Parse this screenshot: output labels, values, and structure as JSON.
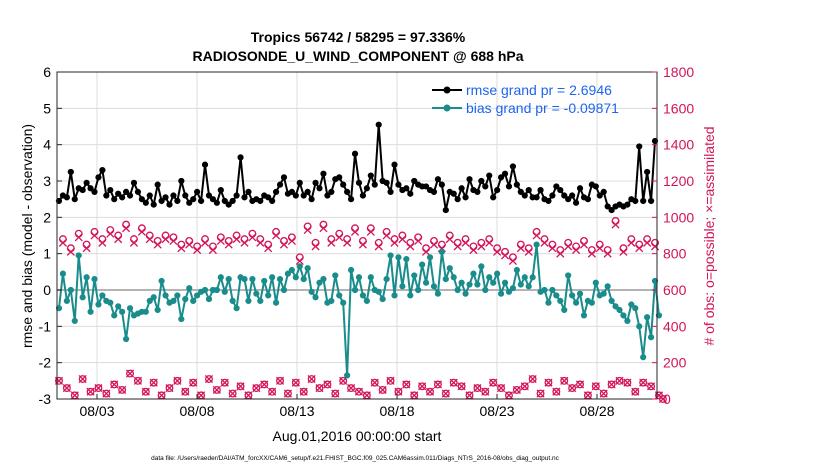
{
  "chart_data": {
    "type": "line",
    "title": "Tropics 56742 / 58295 = 97.336%",
    "subtitle": "RADIOSONDE_U_WIND_COMPONENT @ 688 hPa",
    "xlabel": "Aug.01,2016 00:00:00 start",
    "ylabel_left": "rmse and bias (model - observation)",
    "ylabel_right": "# of obs: o=possible; ×=assimilated",
    "footer": "data file: /Users/raeder/DAI/ATM_forcXX/CAM6_setup/f.e21.FHIST_BGC.f09_025.CAM6assim.011/Diags_NTrS_2016-08/obs_diag_output.nc",
    "x_tick_labels": [
      "08/03",
      "08/08",
      "08/13",
      "08/18",
      "08/23",
      "08/28"
    ],
    "x_tick_days": [
      3,
      8,
      13,
      18,
      23,
      28
    ],
    "xlim_days": [
      1,
      31
    ],
    "ylim_left": [
      -3,
      6
    ],
    "y_ticks_left": [
      "-3",
      "-2",
      "-1",
      "0",
      "1",
      "2",
      "3",
      "4",
      "5",
      "6"
    ],
    "ylim_right": [
      0,
      1800
    ],
    "y_ticks_right": [
      "0",
      "200",
      "400",
      "600",
      "800",
      "1000",
      "1200",
      "1400",
      "1600",
      "1800"
    ],
    "zero_line": 0,
    "colors": {
      "rmse": "#000000",
      "bias": "#1a8c8c",
      "obs": "#d2145a",
      "zero_line": "#b4b4b4",
      "legend_text": "#1e64f0",
      "grid": "#dcdcdc"
    },
    "series": [
      {
        "name": "rmse grand pr = 2.6946",
        "axis": "left",
        "values": [
          2.45,
          2.6,
          2.55,
          3.25,
          2.5,
          2.8,
          2.75,
          2.95,
          2.8,
          2.7,
          3.1,
          3.3,
          2.6,
          2.75,
          2.5,
          2.65,
          2.55,
          2.7,
          2.6,
          2.95,
          2.7,
          2.5,
          2.4,
          2.6,
          2.35,
          2.9,
          2.45,
          2.55,
          2.35,
          2.6,
          2.45,
          3.0,
          2.6,
          2.4,
          2.5,
          2.7,
          2.45,
          3.45,
          2.6,
          2.5,
          2.4,
          2.75,
          2.45,
          2.35,
          2.45,
          2.6,
          3.65,
          2.55,
          2.7,
          2.45,
          2.5,
          2.45,
          2.6,
          2.55,
          2.45,
          2.7,
          2.9,
          3.1,
          2.65,
          2.7,
          2.6,
          2.95,
          2.6,
          2.7,
          2.5,
          2.95,
          2.8,
          3.2,
          2.6,
          2.7,
          3.05,
          3.1,
          2.9,
          2.7,
          2.5,
          3.75,
          2.95,
          2.6,
          2.8,
          3.15,
          2.9,
          4.55,
          3.0,
          2.95,
          2.7,
          3.45,
          2.9,
          2.75,
          2.8,
          2.65,
          3.0,
          2.9,
          2.85,
          2.85,
          2.75,
          2.7,
          3.05,
          2.9,
          2.2,
          2.7,
          2.65,
          2.5,
          2.8,
          2.55,
          3.05,
          2.75,
          2.7,
          3.0,
          2.85,
          3.15,
          2.55,
          2.75,
          3.1,
          3.2,
          2.85,
          3.4,
          2.9,
          2.7,
          2.6,
          2.75,
          2.55,
          2.55,
          2.75,
          2.5,
          2.45,
          2.6,
          2.85,
          2.75,
          2.6,
          2.5,
          2.6,
          2.4,
          2.8,
          2.55,
          2.5,
          2.9,
          2.85,
          2.6,
          2.7,
          2.3,
          2.2,
          2.3,
          2.35,
          2.3,
          2.35,
          2.5,
          2.45,
          3.95,
          2.45,
          3.25,
          2.45,
          4.1
        ]
      },
      {
        "name": "bias grand pr = -0.09871",
        "axis": "left",
        "values": [
          -0.5,
          0.45,
          -0.3,
          0.0,
          -0.85,
          0.95,
          -0.2,
          0.35,
          -0.6,
          0.3,
          -0.4,
          -0.15,
          -0.3,
          -0.35,
          -0.7,
          -0.45,
          -0.6,
          -1.35,
          -0.5,
          -0.7,
          -0.65,
          -0.6,
          -0.6,
          -0.3,
          -0.2,
          -0.55,
          0.25,
          -0.15,
          -0.35,
          -0.3,
          -0.15,
          -0.8,
          -0.25,
          0.05,
          -0.3,
          -0.15,
          -0.05,
          0.0,
          -0.25,
          0.0,
          0.0,
          0.35,
          -0.05,
          0.3,
          -0.3,
          -0.5,
          0.35,
          0.3,
          -0.3,
          0.3,
          -0.1,
          -0.3,
          0.25,
          -0.15,
          0.35,
          -0.35,
          0.3,
          0.0,
          0.45,
          0.55,
          0.35,
          0.65,
          0.3,
          0.6,
          -0.05,
          -0.2,
          0.2,
          0.3,
          -0.35,
          -0.3,
          0.4,
          -0.15,
          -0.35,
          -2.35,
          0.55,
          0.0,
          0.35,
          -0.15,
          -0.3,
          0.35,
          0.0,
          -0.05,
          -0.25,
          0.3,
          0.95,
          -0.15,
          0.9,
          0.1,
          0.85,
          -0.15,
          0.4,
          0.0,
          0.7,
          0.2,
          0.9,
          0.1,
          -0.1,
          1.05,
          0.3,
          0.6,
          0.35,
          0.0,
          0.2,
          -0.1,
          0.15,
          0.45,
          0.15,
          0.65,
          0.0,
          0.35,
          0.2,
          0.45,
          -0.1,
          0.2,
          -0.05,
          0.05,
          0.55,
          0.15,
          0.35,
          0.1,
          0.35,
          1.25,
          -0.05,
          0.0,
          -0.35,
          0.0,
          -0.15,
          -0.3,
          -0.55,
          0.4,
          -0.15,
          -0.35,
          -0.1,
          -0.7,
          -0.3,
          -0.35,
          0.2,
          -0.15,
          -0.1,
          0.1,
          -0.3,
          -0.45,
          -0.55,
          -0.7,
          -0.85,
          -0.4,
          -0.5,
          -1.0,
          -1.85,
          -0.75,
          -1.3,
          0.25,
          -0.7
        ]
      },
      {
        "name": "obs possible",
        "axis": "right",
        "values": [
          100,
          880,
          60,
          830,
          20,
          910,
          110,
          850,
          40,
          920,
          60,
          880,
          30,
          930,
          80,
          900,
          50,
          960,
          140,
          880,
          100,
          940,
          40,
          900,
          90,
          870,
          20,
          900,
          60,
          890,
          100,
          850,
          40,
          870,
          90,
          840,
          20,
          880,
          110,
          840,
          50,
          890,
          90,
          870,
          30,
          900,
          70,
          880,
          20,
          910,
          60,
          880,
          80,
          850,
          40,
          920,
          100,
          870,
          30,
          890,
          90,
          780,
          40,
          950,
          110,
          860,
          60,
          960,
          80,
          880,
          30,
          910,
          100,
          880,
          60,
          940,
          40,
          870,
          20,
          940,
          90,
          860,
          50,
          920,
          100,
          880,
          40,
          900,
          80,
          860,
          20,
          890,
          70,
          830,
          40,
          870,
          80,
          850,
          30,
          900,
          90,
          860,
          70,
          880,
          20,
          840,
          60,
          860,
          40,
          880,
          90,
          830,
          60,
          810,
          20,
          780,
          50,
          850,
          70,
          830,
          110,
          920,
          30,
          880,
          90,
          850,
          40,
          820,
          100,
          860,
          60,
          840,
          80,
          870,
          20,
          820,
          70,
          850,
          30,
          820,
          80,
          980,
          100,
          830,
          90,
          880,
          40,
          850,
          90,
          880,
          70,
          860,
          20,
          0
        ]
      },
      {
        "name": "obs assimilated",
        "axis": "right",
        "values": [
          100,
          860,
          60,
          810,
          20,
          890,
          110,
          830,
          40,
          900,
          60,
          860,
          30,
          910,
          80,
          880,
          50,
          940,
          140,
          860,
          100,
          920,
          40,
          880,
          90,
          850,
          20,
          880,
          60,
          870,
          100,
          830,
          40,
          850,
          90,
          820,
          20,
          860,
          110,
          820,
          50,
          870,
          90,
          850,
          30,
          880,
          70,
          860,
          20,
          890,
          60,
          860,
          80,
          830,
          40,
          900,
          100,
          850,
          30,
          870,
          90,
          760,
          40,
          930,
          110,
          840,
          60,
          940,
          80,
          860,
          30,
          890,
          100,
          860,
          60,
          920,
          40,
          850,
          20,
          920,
          90,
          840,
          50,
          900,
          100,
          860,
          40,
          880,
          80,
          840,
          20,
          870,
          70,
          810,
          40,
          850,
          80,
          830,
          30,
          880,
          90,
          840,
          70,
          860,
          20,
          820,
          60,
          840,
          40,
          860,
          90,
          810,
          60,
          790,
          20,
          760,
          50,
          830,
          70,
          810,
          110,
          900,
          30,
          860,
          90,
          830,
          40,
          800,
          100,
          840,
          60,
          820,
          80,
          850,
          20,
          800,
          70,
          830,
          30,
          800,
          80,
          960,
          100,
          810,
          90,
          860,
          40,
          830,
          90,
          860,
          70,
          840,
          20,
          0
        ]
      }
    ]
  }
}
